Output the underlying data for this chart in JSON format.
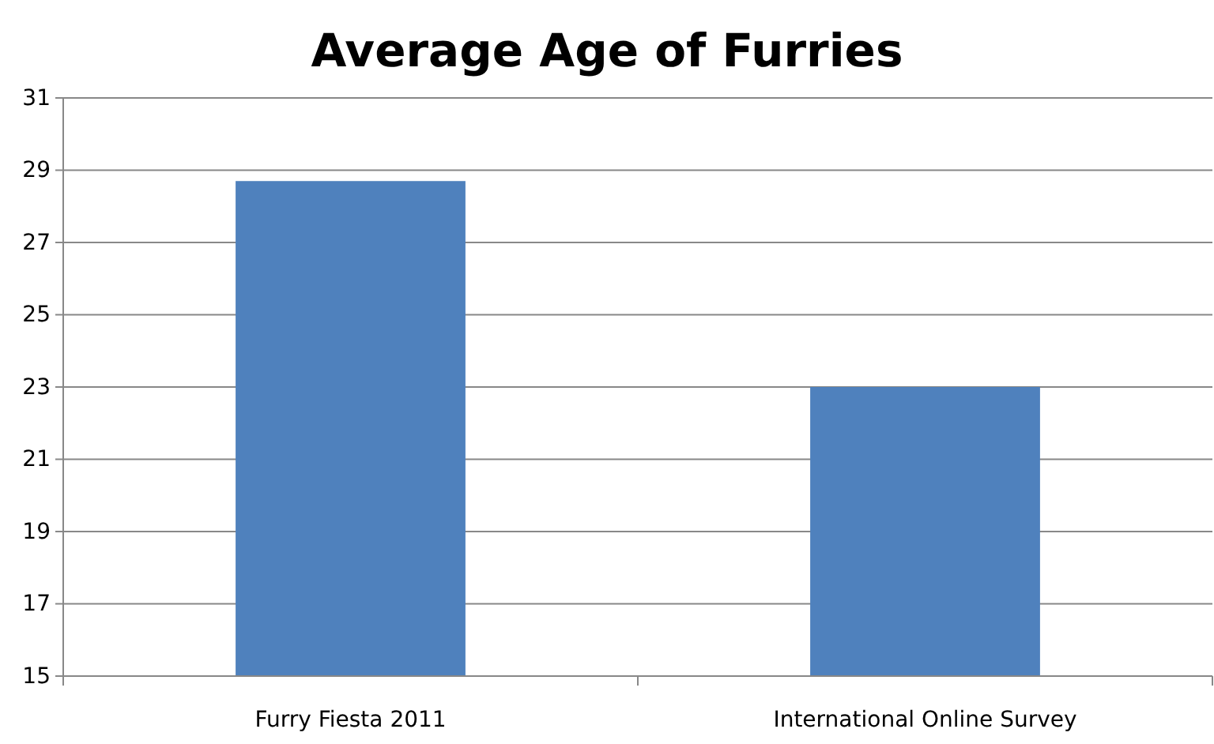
{
  "chart_data": {
    "type": "bar",
    "title": "Average Age of Furries",
    "categories": [
      "Furry Fiesta 2011",
      "International Online Survey"
    ],
    "values": [
      28.7,
      23.0
    ],
    "color": "#4f81bd",
    "ylim": [
      15,
      31
    ],
    "yticks": [
      15,
      17,
      19,
      21,
      23,
      25,
      27,
      29,
      31
    ],
    "grid": "y"
  }
}
